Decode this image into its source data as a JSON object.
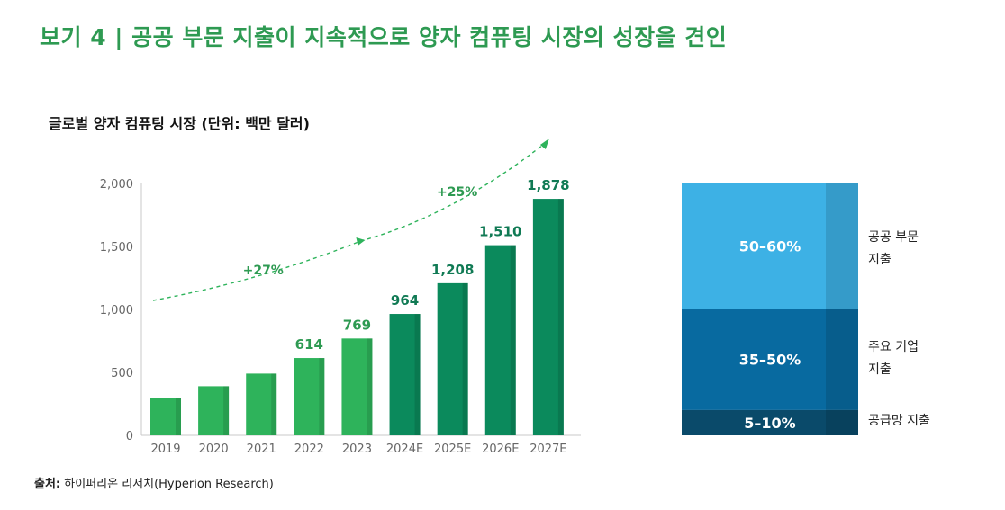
{
  "title": "보기 4 | 공공 부문 지출이 지속적으로 양자 컴퓨팅 시장의 성장을 견인",
  "subtitle": "글로벌 양자 컴퓨팅 시장 (단위: 백만 달러)",
  "source_label": "출처:",
  "source_text": "하이퍼리온 리서치(Hyperion Research)",
  "chart_data": [
    {
      "type": "bar",
      "title": "글로벌 양자 컴퓨팅 시장 (단위: 백만 달러)",
      "categories": [
        "2019",
        "2020",
        "2021",
        "2022",
        "2023",
        "2024E",
        "2025E",
        "2026E",
        "2027E"
      ],
      "values": [
        300,
        390,
        490,
        614,
        769,
        964,
        1208,
        1510,
        1878
      ],
      "data_labels": [
        "",
        "",
        "",
        "614",
        "769",
        "964",
        "1,208",
        "1,510",
        "1,878"
      ],
      "y_ticks": [
        0,
        500,
        1000,
        1500,
        2000
      ],
      "y_tick_labels": [
        "0",
        "500",
        "1,000",
        "1,500",
        "2,000"
      ],
      "ylim": [
        0,
        2000
      ],
      "colors": {
        "actual": "#2eb35b",
        "estimate": "#0b8a5c"
      },
      "growth_annotations": [
        "+27%",
        "+25%"
      ]
    },
    {
      "type": "bar",
      "stacked": true,
      "segments": [
        {
          "label": "50–60%",
          "category": "공공 부문 지출",
          "lines": [
            "공공 부문",
            "지출"
          ],
          "share": 0.5,
          "color": "#3db1e5"
        },
        {
          "label": "35–50%",
          "category": "주요 기업 지출",
          "lines": [
            "주요 기업",
            "지출"
          ],
          "share": 0.4,
          "color": "#086aa0"
        },
        {
          "label": "5–10%",
          "category": "공급망 지출",
          "lines": [
            "공급망 지출"
          ],
          "share": 0.1,
          "color": "#0a4a6a"
        }
      ]
    }
  ]
}
